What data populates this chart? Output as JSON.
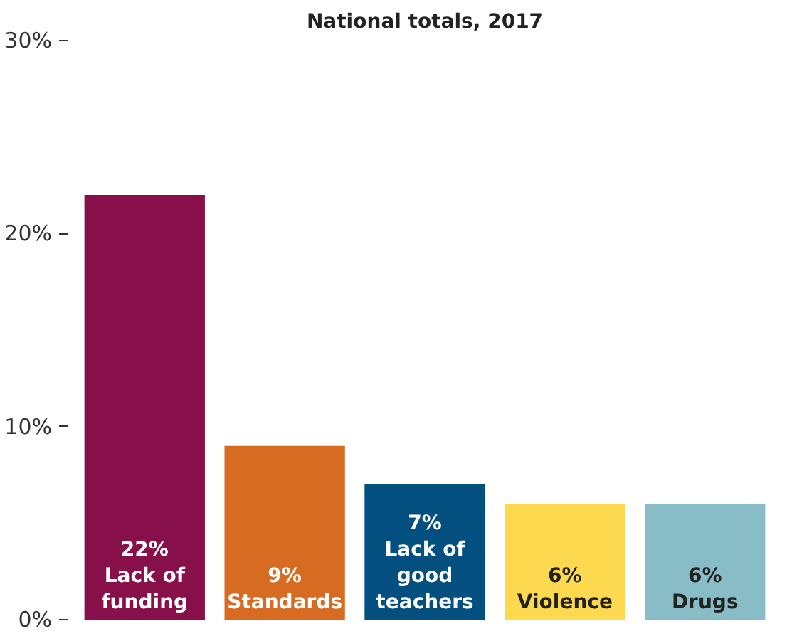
{
  "chart_data": {
    "type": "bar",
    "title": "National totals, 2017",
    "categories": [
      "Lack of funding",
      "Standards",
      "Lack of good teachers",
      "Violence",
      "Drugs"
    ],
    "values": [
      22,
      9,
      7,
      6,
      6
    ],
    "colors": [
      "#88104a",
      "#d66b21",
      "#024f80",
      "#fdd94f",
      "#88bcc6"
    ],
    "value_labels": [
      "22%",
      "9%",
      "7%",
      "6%",
      "6%"
    ],
    "ylim": [
      0,
      30
    ],
    "yticks": [
      {
        "value": 0,
        "label": "0%"
      },
      {
        "value": 10,
        "label": "10%"
      },
      {
        "value": 20,
        "label": "20%"
      },
      {
        "value": 30,
        "label": "30%"
      }
    ],
    "grid": false
  }
}
